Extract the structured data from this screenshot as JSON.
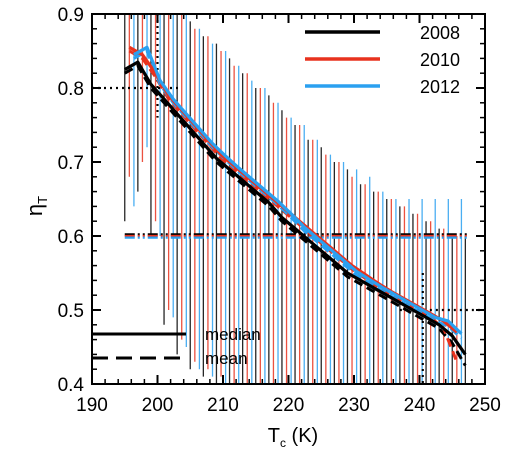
{
  "chart_data": {
    "type": "line",
    "xlabel": "T",
    "xlabel_sub": "c",
    "xlabel_unit": " (K)",
    "ylabel": "η",
    "ylabel_sub": "T",
    "xlim": [
      190,
      250
    ],
    "ylim": [
      0.4,
      0.9
    ],
    "xticks": [
      190,
      200,
      210,
      220,
      230,
      240,
      250
    ],
    "yticks": [
      0.4,
      0.5,
      0.6,
      0.7,
      0.8,
      0.9
    ],
    "legend_position": "top-right",
    "series": [
      {
        "name": "2008",
        "color": "#000000",
        "x": [
          195,
          197,
          199,
          201,
          203,
          205,
          207,
          209,
          211,
          213,
          215,
          217,
          219,
          221,
          223,
          225,
          227,
          229,
          231,
          233,
          235,
          237,
          239,
          241,
          243,
          245,
          247
        ],
        "median": [
          0.825,
          0.835,
          0.805,
          0.785,
          0.765,
          0.745,
          0.725,
          0.705,
          0.69,
          0.675,
          0.66,
          0.645,
          0.625,
          0.61,
          0.595,
          0.58,
          0.565,
          0.55,
          0.54,
          0.53,
          0.52,
          0.51,
          0.5,
          0.49,
          0.48,
          0.465,
          0.44
        ],
        "mean": [
          0.82,
          0.83,
          0.8,
          0.78,
          0.76,
          0.74,
          0.72,
          0.7,
          0.685,
          0.67,
          0.655,
          0.64,
          0.62,
          0.605,
          0.59,
          0.575,
          0.56,
          0.545,
          0.535,
          0.525,
          0.515,
          0.505,
          0.495,
          0.485,
          0.475,
          0.455,
          0.425
        ],
        "err_low": [
          0.62,
          0.66,
          0.6,
          0.48,
          0.44,
          0.42,
          0.41,
          0.4,
          0.4,
          0.4,
          0.4,
          0.4,
          0.4,
          0.4,
          0.4,
          0.4,
          0.4,
          0.4,
          0.4,
          0.4,
          0.4,
          0.4,
          0.4,
          0.4,
          0.4,
          0.4,
          0.4
        ],
        "err_high": [
          0.9,
          0.9,
          0.9,
          0.9,
          0.9,
          0.89,
          0.87,
          0.86,
          0.84,
          0.82,
          0.8,
          0.79,
          0.77,
          0.75,
          0.73,
          0.72,
          0.7,
          0.69,
          0.67,
          0.66,
          0.65,
          0.64,
          0.63,
          0.62,
          0.61,
          0.6,
          0.6
        ],
        "threshold": 0.6
      },
      {
        "name": "2010",
        "color": "#e8321e",
        "x": [
          195.7,
          197.7,
          199.7,
          201.7,
          203.7,
          205.7,
          207.7,
          209.7,
          211.7,
          213.7,
          215.7,
          217.7,
          219.7,
          221.7,
          223.7,
          225.7,
          227.7,
          229.7,
          231.7,
          233.7,
          235.7,
          237.7,
          239.7,
          241.7,
          243.7,
          245.7
        ],
        "median": [
          0.855,
          0.845,
          0.82,
          0.79,
          0.77,
          0.75,
          0.73,
          0.71,
          0.695,
          0.68,
          0.665,
          0.65,
          0.635,
          0.62,
          0.605,
          0.59,
          0.575,
          0.56,
          0.548,
          0.536,
          0.525,
          0.515,
          0.505,
          0.495,
          0.485,
          0.47
        ],
        "mean": [
          0.85,
          0.84,
          0.815,
          0.785,
          0.765,
          0.745,
          0.725,
          0.705,
          0.69,
          0.675,
          0.66,
          0.645,
          0.63,
          0.615,
          0.6,
          0.585,
          0.57,
          0.555,
          0.543,
          0.531,
          0.52,
          0.51,
          0.5,
          0.49,
          0.475,
          0.43
        ],
        "err_low": [
          0.68,
          0.7,
          0.62,
          0.5,
          0.46,
          0.43,
          0.42,
          0.41,
          0.4,
          0.4,
          0.4,
          0.4,
          0.4,
          0.4,
          0.4,
          0.4,
          0.4,
          0.4,
          0.4,
          0.4,
          0.4,
          0.4,
          0.4,
          0.4,
          0.4,
          0.4
        ],
        "err_high": [
          0.9,
          0.9,
          0.9,
          0.9,
          0.9,
          0.88,
          0.87,
          0.85,
          0.83,
          0.82,
          0.8,
          0.78,
          0.76,
          0.75,
          0.73,
          0.71,
          0.7,
          0.68,
          0.67,
          0.66,
          0.65,
          0.64,
          0.63,
          0.62,
          0.61,
          0.6
        ],
        "threshold": 0.6
      },
      {
        "name": "2012",
        "color": "#2aa0f0",
        "x": [
          196.4,
          198.4,
          200.4,
          202.4,
          204.4,
          206.4,
          208.4,
          210.4,
          212.4,
          214.4,
          216.4,
          218.4,
          220.4,
          222.4,
          224.4,
          226.4,
          228.4,
          230.4,
          232.4,
          234.4,
          236.4,
          238.4,
          240.4,
          242.4,
          244.4,
          246.4
        ],
        "median": [
          0.845,
          0.855,
          0.81,
          0.785,
          0.765,
          0.745,
          0.725,
          0.708,
          0.692,
          0.677,
          0.662,
          0.647,
          0.63,
          0.612,
          0.597,
          0.582,
          0.567,
          0.552,
          0.541,
          0.53,
          0.52,
          0.51,
          0.5,
          0.49,
          0.485,
          0.468
        ],
        "mean": [
          0.84,
          0.85,
          0.805,
          0.78,
          0.76,
          0.74,
          0.72,
          0.703,
          0.687,
          0.672,
          0.657,
          0.642,
          0.625,
          0.607,
          0.592,
          0.577,
          0.562,
          0.547,
          0.536,
          0.525,
          0.515,
          0.505,
          0.495,
          0.485,
          0.478,
          0.462
        ],
        "err_low": [
          0.64,
          0.72,
          0.6,
          0.49,
          0.45,
          0.42,
          0.41,
          0.4,
          0.4,
          0.4,
          0.4,
          0.4,
          0.4,
          0.4,
          0.4,
          0.4,
          0.4,
          0.4,
          0.4,
          0.4,
          0.4,
          0.4,
          0.4,
          0.4,
          0.4,
          0.4
        ],
        "err_high": [
          0.9,
          0.9,
          0.9,
          0.9,
          0.9,
          0.88,
          0.86,
          0.85,
          0.83,
          0.81,
          0.8,
          0.78,
          0.76,
          0.75,
          0.73,
          0.71,
          0.7,
          0.69,
          0.68,
          0.66,
          0.65,
          0.65,
          0.65,
          0.65,
          0.65,
          0.65
        ],
        "threshold": 0.6
      }
    ],
    "reference_lines": [
      {
        "x": 200,
        "y_top": 0.9,
        "y_bottom": 0.76,
        "y_h": 0.8,
        "x_h_start": 190
      },
      {
        "x": 240.5,
        "y_top": 0.55,
        "y_bottom": 0.4,
        "y_h": 0.5,
        "x_h_end": 250
      }
    ],
    "style_legend": [
      {
        "label": "median",
        "dash": "solid"
      },
      {
        "label": "mean",
        "dash": "dashed"
      }
    ]
  }
}
